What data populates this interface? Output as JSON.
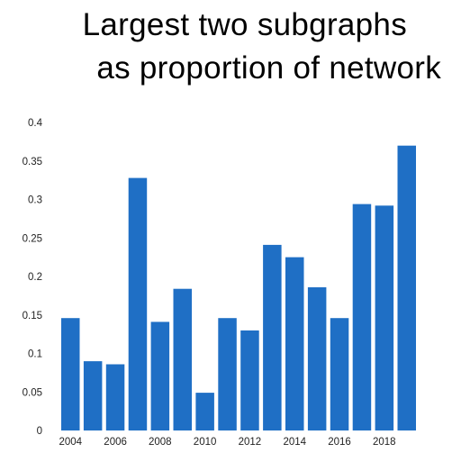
{
  "chart_data": {
    "type": "bar",
    "title_lines": [
      "Largest two subgraphs",
      "as proportion of network"
    ],
    "xlabel": "",
    "ylabel": "",
    "ylim": [
      0,
      0.4
    ],
    "y_ticks": [
      "0",
      "0.05",
      "0.1",
      "0.15",
      "0.2",
      "0.25",
      "0.3",
      "0.35",
      "0.4"
    ],
    "x_tick_labels": [
      "2004",
      "2006",
      "2008",
      "2010",
      "2012",
      "2014",
      "2016",
      "2018"
    ],
    "categories": [
      "2004",
      "2005",
      "2006",
      "2007",
      "2008",
      "2009",
      "2010",
      "2011",
      "2012",
      "2013",
      "2014",
      "2015",
      "2016",
      "2017",
      "2018",
      "2019"
    ],
    "values": [
      0.146,
      0.09,
      0.086,
      0.328,
      0.141,
      0.184,
      0.049,
      0.146,
      0.13,
      0.241,
      0.225,
      0.186,
      0.146,
      0.294,
      0.292,
      0.37
    ],
    "bar_color": "#1f6fc5",
    "grid": false,
    "legend": "none"
  }
}
